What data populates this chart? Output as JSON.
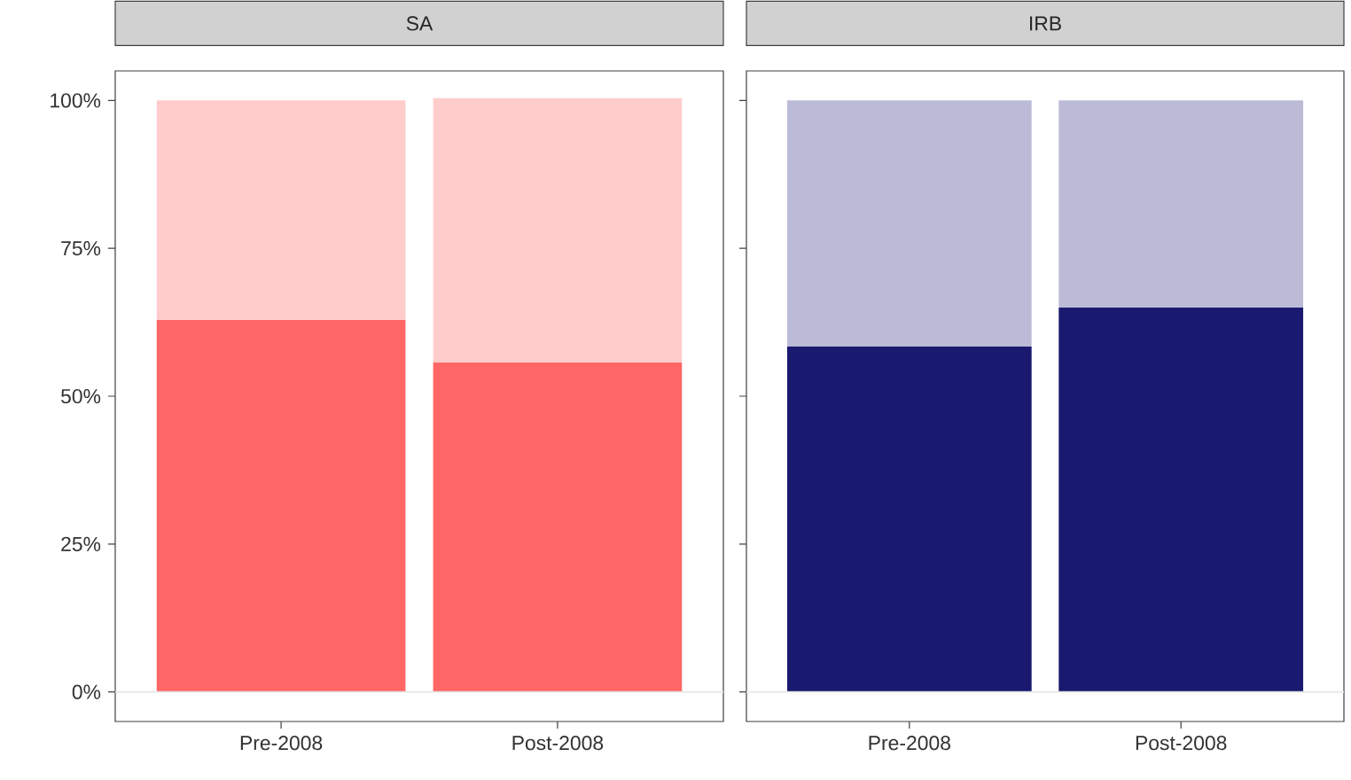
{
  "chart_data": [
    {
      "type": "bar",
      "title": "SA",
      "stacked": true,
      "categories": [
        "Pre-2008",
        "Post-2008"
      ],
      "series": [
        {
          "color": "#ff6666",
          "values": [
            62.9,
            55.7
          ]
        },
        {
          "color": "#ffcccc",
          "values": [
            37.1,
            44.7
          ]
        }
      ],
      "ylim": [
        -5,
        105
      ],
      "yticks": [
        {
          "value": 0,
          "label": "0%"
        },
        {
          "value": 25,
          "label": "25%"
        },
        {
          "value": 50,
          "label": "50%"
        },
        {
          "value": 75,
          "label": "75%"
        },
        {
          "value": 100,
          "label": "100%"
        }
      ],
      "ref_lines": [
        {
          "axis": "y",
          "value": 0,
          "color": "#e5e5e5"
        }
      ]
    },
    {
      "type": "bar",
      "title": "IRB",
      "stacked": true,
      "categories": [
        "Pre-2008",
        "Post-2008"
      ],
      "series": [
        {
          "color": "#191970",
          "values": [
            58.4,
            65.0
          ]
        },
        {
          "color": "#bbbbd7",
          "values": [
            41.6,
            35.0
          ]
        }
      ],
      "ylim": [
        -5,
        105
      ],
      "yticks": [
        {
          "value": 0,
          "label": null
        },
        {
          "value": 25,
          "label": null
        },
        {
          "value": 50,
          "label": null
        },
        {
          "value": 75,
          "label": null
        },
        {
          "value": 100,
          "label": null
        }
      ],
      "tick_labels": "x",
      "ref_lines": [
        {
          "axis": "y",
          "value": 0,
          "color": "#e5e5e5"
        }
      ]
    }
  ]
}
